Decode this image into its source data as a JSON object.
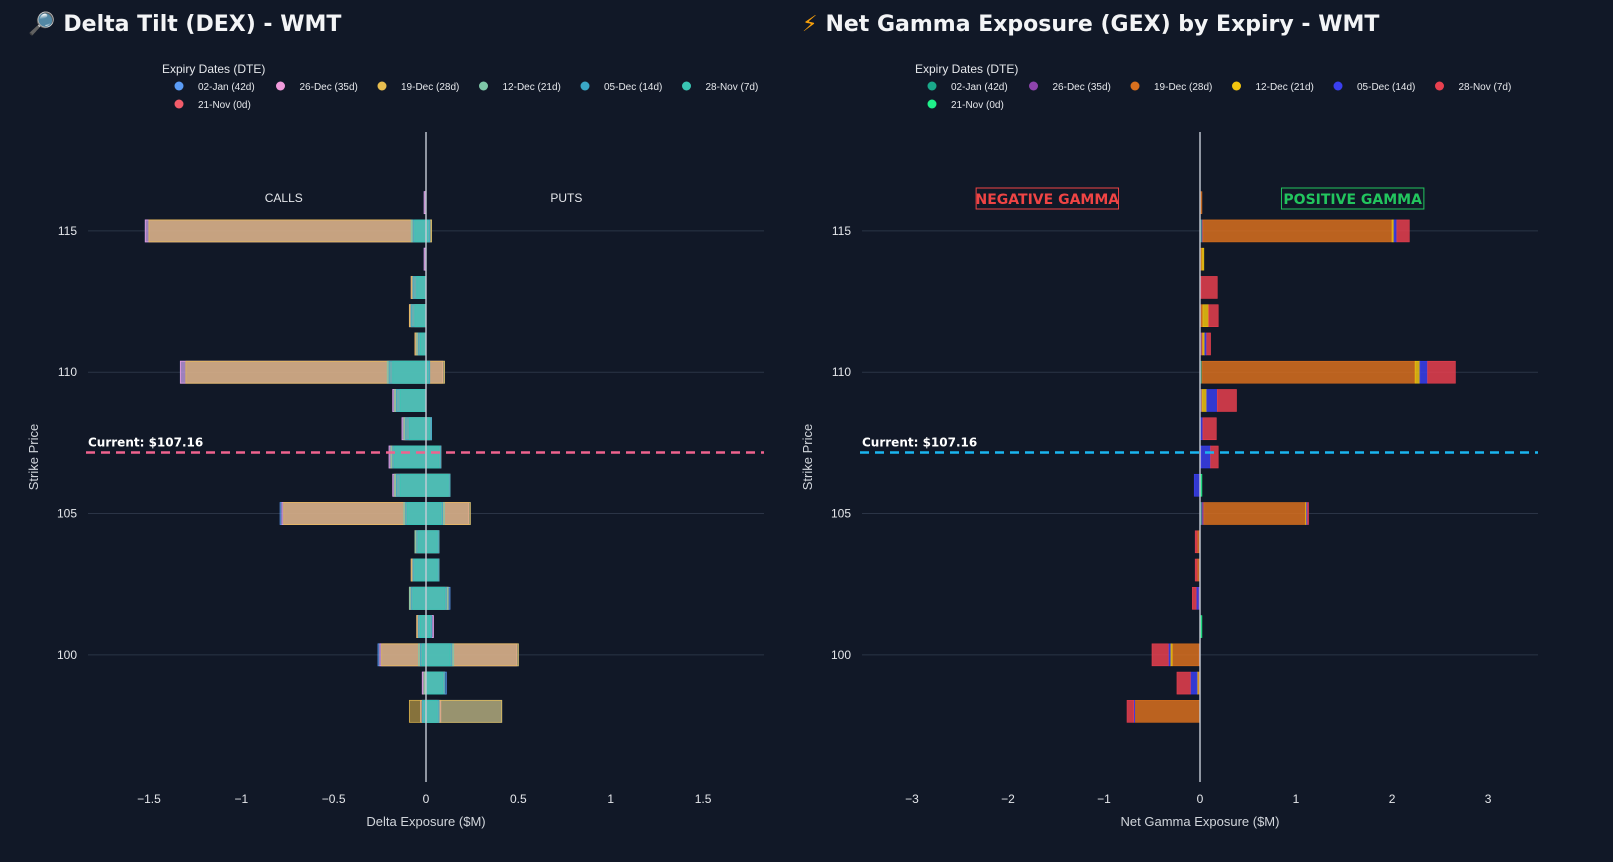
{
  "charts": [
    {
      "id": "dex",
      "title": "Delta Tilt (DEX) - WMT",
      "icon": "magnifier-icon",
      "icon_glyph": "🔎",
      "legend_title": "Expiry Dates (DTE)",
      "legend": [
        {
          "label": "02-Jan (42d)",
          "color": "#5b9cf6"
        },
        {
          "label": "26-Dec (35d)",
          "color": "#f19bdc"
        },
        {
          "label": "19-Dec (28d)",
          "color": "#e8bd4f"
        },
        {
          "label": "12-Dec (21d)",
          "color": "#7fc8a9"
        },
        {
          "label": "05-Dec (14d)",
          "color": "#3aa7c6"
        },
        {
          "label": "28-Nov (7d)",
          "color": "#39c6b4"
        },
        {
          "label": "21-Nov (0d)",
          "color": "#f25c6a"
        }
      ],
      "annotations": [
        "CALLS",
        "PUTS"
      ],
      "current_label": "Current: $107.16",
      "current_price": 107.16,
      "current_color": "#f0628e",
      "xlabel": "Delta Exposure ($M)",
      "ylabel": "Strike Price",
      "x_ticks": [
        "−1.5",
        "−1",
        "−0.5",
        "0",
        "0.5",
        "1",
        "1.5"
      ],
      "x_tick_values": [
        -1.5,
        -1,
        -0.5,
        0,
        0.5,
        1,
        1.5
      ],
      "y_ticks": [
        "115",
        "110",
        "105",
        "100"
      ],
      "y_tick_values": [
        115,
        110,
        105,
        100
      ]
    },
    {
      "id": "gex",
      "title": "Net Gamma Exposure (GEX) by Expiry - WMT",
      "icon": "lightning-icon",
      "icon_glyph": "⚡",
      "legend_title": "Expiry Dates (DTE)",
      "legend": [
        {
          "label": "02-Jan (42d)",
          "color": "#1aa88a"
        },
        {
          "label": "26-Dec (35d)",
          "color": "#8e44ad"
        },
        {
          "label": "19-Dec (28d)",
          "color": "#d9701e"
        },
        {
          "label": "12-Dec (21d)",
          "color": "#f1c40f"
        },
        {
          "label": "05-Dec (14d)",
          "color": "#3a3ff0"
        },
        {
          "label": "28-Nov (7d)",
          "color": "#e8404f"
        },
        {
          "label": "21-Nov (0d)",
          "color": "#1ff08a"
        }
      ],
      "annotations": [
        "NEGATIVE GAMMA",
        "POSITIVE GAMMA"
      ],
      "annotation_colors": [
        "#ef4444",
        "#22c55e"
      ],
      "current_label": "Current: $107.16",
      "current_price": 107.16,
      "current_color": "#1ab6f0",
      "xlabel": "Net Gamma Exposure ($M)",
      "ylabel": "Strike Price",
      "x_ticks": [
        "−3",
        "−2",
        "−1",
        "0",
        "1",
        "2",
        "3"
      ],
      "x_tick_values": [
        -3,
        -2,
        -1,
        0,
        1,
        2,
        3
      ],
      "y_ticks": [
        "115",
        "110",
        "105",
        "100"
      ],
      "y_tick_values": [
        115,
        110,
        105,
        100
      ]
    }
  ],
  "chart_data": [
    {
      "type": "bar",
      "orientation": "horizontal",
      "barmode": "overlay",
      "title": "Delta Tilt (DEX) - WMT",
      "xlabel": "Delta Exposure ($M)",
      "ylabel": "Strike Price",
      "xlim": [
        -1.83,
        1.83
      ],
      "ylim": [
        95.5,
        118.5
      ],
      "strikes": [
        116,
        115,
        114,
        113,
        112,
        111,
        110,
        109,
        108,
        107,
        106,
        105,
        104,
        103,
        102,
        101,
        100,
        99,
        98
      ],
      "series": [
        {
          "name": "02-Jan (42d)",
          "calls": [
            -0.01,
            -1.52,
            -0.01,
            -0.08,
            -0.09,
            -0.06,
            -1.33,
            -0.18,
            -0.13,
            -0.2,
            -0.18,
            -0.79,
            -0.06,
            -0.08,
            -0.09,
            -0.05,
            -0.26,
            -0.02,
            -0.02
          ],
          "puts": [
            0,
            0.03,
            0,
            0,
            0,
            0,
            0.1,
            0,
            0.03,
            0.08,
            0.13,
            0.24,
            0.07,
            0.07,
            0.13,
            0.04,
            0.5,
            0.11,
            0.41
          ]
        },
        {
          "name": "26-Dec (35d)",
          "calls": [
            -0.01,
            -1.52,
            -0.01,
            -0.08,
            -0.09,
            -0.06,
            -1.33,
            -0.18,
            -0.13,
            -0.2,
            -0.18,
            -0.78,
            -0.06,
            -0.08,
            -0.09,
            -0.05,
            -0.25,
            -0.02,
            -0.03
          ],
          "puts": [
            0,
            0.02,
            0,
            0,
            0,
            0,
            0.09,
            0,
            0.03,
            0.08,
            0.13,
            0.23,
            0.07,
            0.07,
            0.12,
            0.04,
            0.49,
            0.1,
            0.08
          ]
        },
        {
          "name": "19-Dec (28d)",
          "calls": [
            0,
            -1.5,
            0,
            -0.08,
            -0.09,
            -0.06,
            -1.3,
            -0.17,
            -0.12,
            -0.19,
            -0.17,
            -0.77,
            -0.06,
            -0.08,
            -0.09,
            -0.05,
            -0.24,
            -0.01,
            -0.09
          ],
          "puts": [
            0,
            0.03,
            0,
            0,
            0,
            0,
            0.1,
            0,
            0.02,
            0.08,
            0.13,
            0.24,
            0.07,
            0.07,
            0.12,
            0.03,
            0.5,
            0.1,
            0.41
          ]
        },
        {
          "name": "12-Dec (21d)",
          "calls": [
            0,
            -0.08,
            0,
            -0.07,
            -0.08,
            -0.05,
            -0.21,
            -0.17,
            -0.12,
            -0.19,
            -0.17,
            -0.12,
            -0.06,
            -0.07,
            -0.09,
            -0.04,
            -0.04,
            -0.01,
            -0.02
          ],
          "puts": [
            0,
            0.02,
            0,
            0,
            0,
            0,
            0.02,
            0,
            0.03,
            0.08,
            0.13,
            0.1,
            0.07,
            0.07,
            0.12,
            0.03,
            0.15,
            0.1,
            0.07
          ]
        },
        {
          "name": "05-Dec (14d)",
          "calls": [
            0,
            -0.07,
            0,
            -0.07,
            -0.08,
            -0.04,
            -0.2,
            -0.16,
            -0.11,
            -0.18,
            -0.16,
            -0.11,
            -0.05,
            -0.07,
            -0.08,
            -0.04,
            -0.03,
            0,
            -0.02
          ],
          "puts": [
            0,
            0.02,
            0,
            0,
            0,
            0,
            0.02,
            0,
            0.03,
            0.08,
            0.13,
            0.09,
            0.07,
            0.07,
            0.11,
            0.03,
            0.14,
            0.1,
            0.07
          ]
        },
        {
          "name": "28-Nov (7d)",
          "calls": [
            0,
            -0.06,
            0,
            -0.05,
            -0.06,
            -0.03,
            -0.18,
            -0.14,
            -0.09,
            -0.17,
            -0.14,
            -0.1,
            -0.04,
            -0.06,
            -0.07,
            -0.03,
            -0.02,
            0,
            -0.01
          ],
          "puts": [
            0,
            0.01,
            0,
            0,
            0,
            0,
            0.01,
            0,
            0.02,
            0.07,
            0.12,
            0.08,
            0.06,
            0.06,
            0.1,
            0.02,
            0.13,
            0.09,
            0.06
          ]
        },
        {
          "name": "21-Nov (0d)",
          "calls": [
            0,
            0,
            0,
            0,
            0,
            0,
            0,
            0,
            0,
            0,
            0,
            0,
            0,
            0,
            0,
            0,
            0,
            0,
            0
          ],
          "puts": [
            0,
            0,
            0,
            0,
            0,
            0,
            0,
            0,
            0,
            0,
            0,
            0,
            0,
            0,
            0,
            0,
            0,
            0,
            0
          ]
        }
      ]
    },
    {
      "type": "bar",
      "orientation": "horizontal",
      "barmode": "relative",
      "title": "Net Gamma Exposure (GEX) by Expiry - WMT",
      "xlabel": "Net Gamma Exposure ($M)",
      "ylabel": "Strike Price",
      "xlim": [
        -3.52,
        3.52
      ],
      "ylim": [
        95.5,
        118.5
      ],
      "strikes": [
        116,
        115,
        114,
        113,
        112,
        111,
        110,
        109,
        108,
        107,
        106,
        105,
        104,
        103,
        102,
        101,
        100,
        99,
        98
      ],
      "series": [
        {
          "name": "02-Jan (42d)",
          "values": [
            0,
            0.02,
            0,
            0,
            0,
            0,
            0.02,
            0.01,
            0,
            0,
            0,
            0.02,
            0,
            0,
            -0.01,
            0,
            0,
            0,
            0
          ]
        },
        {
          "name": "26-Dec (35d)",
          "values": [
            0,
            0.01,
            0,
            0.01,
            0.01,
            0.02,
            0,
            0.01,
            0,
            0.01,
            0,
            0.02,
            -0.01,
            -0.01,
            -0.01,
            0,
            -0.01,
            -0.01,
            0
          ]
        },
        {
          "name": "19-Dec (28d)",
          "values": [
            0.02,
            1.97,
            0.02,
            0,
            0.02,
            0.01,
            2.22,
            0,
            0,
            0,
            0,
            1.06,
            -0.02,
            -0.02,
            0,
            0,
            -0.28,
            -0.01,
            -0.68
          ]
        },
        {
          "name": "12-Dec (21d)",
          "values": [
            0,
            0.02,
            0.02,
            0,
            0.06,
            0.02,
            0.05,
            0.05,
            0,
            0,
            0,
            0.01,
            0,
            0,
            0,
            0,
            -0.02,
            -0.01,
            0
          ]
        },
        {
          "name": "05-Dec (14d)",
          "values": [
            0,
            0.03,
            0,
            0,
            0,
            0.02,
            0.08,
            0.11,
            0.03,
            0.1,
            -0.06,
            0.01,
            0,
            0,
            -0.02,
            0,
            -0.02,
            -0.07,
            -0.01
          ]
        },
        {
          "name": "28-Nov (7d)",
          "values": [
            0,
            0.13,
            0,
            0.17,
            0.1,
            0.04,
            0.29,
            0.2,
            0.14,
            0.08,
            0,
            0.01,
            -0.02,
            -0.02,
            -0.04,
            0,
            -0.17,
            -0.14,
            -0.07
          ]
        },
        {
          "name": "21-Nov (0d)",
          "values": [
            0,
            0,
            0,
            0,
            0,
            0,
            0,
            0,
            0,
            0,
            0.02,
            0,
            0,
            0,
            0,
            0.02,
            0,
            0,
            0
          ]
        }
      ]
    }
  ]
}
